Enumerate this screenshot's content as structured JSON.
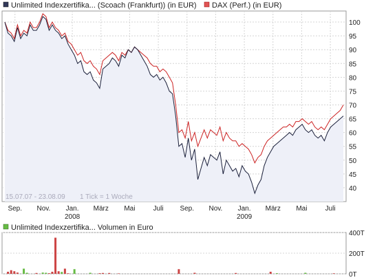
{
  "chart_data": [
    {
      "type": "line",
      "title": "",
      "legend": [
        "Unlimited Indexzertifika... (Scoach (Frankfurt)) (in EUR)",
        "DAX (Perf.) (in EUR)"
      ],
      "legend_placement": "top",
      "range_label": "15.07.07 - 23.08.09",
      "tick_note": "1 Tick = 1 Woche",
      "x_labels": [
        "Sep.",
        "Nov.",
        "Jan.",
        "März",
        "Mai",
        "Juli",
        "Sep.",
        "Nov.",
        "Jan.",
        "März",
        "Mai",
        "Juli"
      ],
      "year_labels": [
        "2008",
        "2009"
      ],
      "ylim": [
        35,
        104
      ],
      "y_ticks": [
        40,
        45,
        50,
        55,
        60,
        65,
        70,
        75,
        80,
        85,
        90,
        95,
        100
      ],
      "grid": true,
      "series": [
        {
          "name": "Unlimited Indexzertifika... (Scoach (Frankfurt)) (in EUR)",
          "color": "#1a1f3a",
          "values": [
            100,
            96,
            95,
            93,
            98,
            94,
            96,
            95,
            99,
            97,
            97,
            99,
            102,
            101,
            97,
            99,
            97,
            96,
            94,
            95,
            92,
            90,
            88,
            85,
            86,
            82,
            81,
            82,
            79,
            78,
            76,
            83,
            84,
            85,
            87,
            86,
            84,
            88,
            87,
            90,
            89,
            91,
            90,
            88,
            86,
            84,
            81,
            80,
            81,
            79,
            80,
            78,
            75,
            74,
            66,
            55,
            56,
            51,
            58,
            50,
            54,
            43,
            47,
            51,
            48,
            52,
            51,
            50,
            53,
            45,
            50,
            48,
            46,
            47,
            44,
            48,
            46,
            45,
            42,
            38,
            41,
            43,
            48,
            51,
            53,
            55,
            56,
            57,
            58,
            59,
            60,
            59,
            61,
            62,
            63,
            61,
            60,
            61,
            59,
            58,
            59,
            57,
            60,
            62,
            63,
            64,
            65,
            66
          ]
        },
        {
          "name": "DAX (Perf.) (in EUR)",
          "color": "#cc2222",
          "values": [
            100,
            97,
            96,
            94,
            99,
            95,
            97,
            96,
            100,
            98,
            98,
            100,
            103,
            102,
            98,
            100,
            98,
            97,
            95,
            96,
            93,
            92,
            90,
            88,
            89,
            86,
            85,
            86,
            84,
            83,
            81,
            86,
            87,
            88,
            89,
            88,
            86,
            89,
            88,
            90,
            89,
            91,
            90,
            89,
            88,
            87,
            85,
            84,
            84,
            82,
            83,
            82,
            80,
            78,
            70,
            60,
            61,
            58,
            64,
            57,
            60,
            55,
            58,
            61,
            58,
            61,
            60,
            59,
            62,
            57,
            60,
            58,
            57,
            57,
            55,
            56,
            55,
            54,
            52,
            49,
            51,
            52,
            55,
            57,
            58,
            59,
            60,
            61,
            62,
            62,
            63,
            62,
            64,
            64,
            65,
            64,
            63,
            64,
            62,
            61,
            62,
            61,
            63,
            65,
            66,
            67,
            68,
            70
          ]
        }
      ]
    },
    {
      "type": "bar",
      "title": "Unlimited Indexzertifika... Volumen in Euro",
      "legend": [
        "Unlimited Indexzertifika... Volumen in Euro"
      ],
      "ylim": [
        0,
        400
      ],
      "y_ticks": [
        "0T",
        "200T",
        "400T"
      ],
      "bars": [
        {
          "i": 1,
          "v": 20,
          "color": "#cc4444"
        },
        {
          "i": 2,
          "v": 35,
          "color": "#cc4444"
        },
        {
          "i": 3,
          "v": 25,
          "color": "#cc4444"
        },
        {
          "i": 4,
          "v": 12,
          "color": "#cc4444"
        },
        {
          "i": 6,
          "v": 50,
          "color": "#66bb44"
        },
        {
          "i": 7,
          "v": 10,
          "color": "#66bb44"
        },
        {
          "i": 10,
          "v": 8,
          "color": "#cc4444"
        },
        {
          "i": 12,
          "v": 12,
          "color": "#66bb44"
        },
        {
          "i": 13,
          "v": 10,
          "color": "#66bb44"
        },
        {
          "i": 14,
          "v": 6,
          "color": "#cc4444"
        },
        {
          "i": 15,
          "v": 20,
          "color": "#cc4444"
        },
        {
          "i": 16,
          "v": 350,
          "color": "#cc4444"
        },
        {
          "i": 17,
          "v": 25,
          "color": "#cc4444"
        },
        {
          "i": 18,
          "v": 18,
          "color": "#66bb44"
        },
        {
          "i": 19,
          "v": 50,
          "color": "#cc4444"
        },
        {
          "i": 20,
          "v": 5,
          "color": "#cc4444"
        },
        {
          "i": 22,
          "v": 45,
          "color": "#66bb44"
        },
        {
          "i": 27,
          "v": 10,
          "color": "#66bb44"
        },
        {
          "i": 30,
          "v": 6,
          "color": "#cc4444"
        },
        {
          "i": 31,
          "v": 8,
          "color": "#cc4444"
        },
        {
          "i": 33,
          "v": 8,
          "color": "#cc4444"
        },
        {
          "i": 36,
          "v": 4,
          "color": "#cc4444"
        },
        {
          "i": 55,
          "v": 45,
          "color": "#cc4444"
        },
        {
          "i": 60,
          "v": 10,
          "color": "#cc4444"
        },
        {
          "i": 73,
          "v": 8,
          "color": "#cc4444"
        },
        {
          "i": 84,
          "v": 20,
          "color": "#cc4444"
        },
        {
          "i": 86,
          "v": 6,
          "color": "#66bb44"
        },
        {
          "i": 95,
          "v": 10,
          "color": "#66bb44"
        },
        {
          "i": 104,
          "v": 5,
          "color": "#cc4444"
        }
      ]
    }
  ]
}
